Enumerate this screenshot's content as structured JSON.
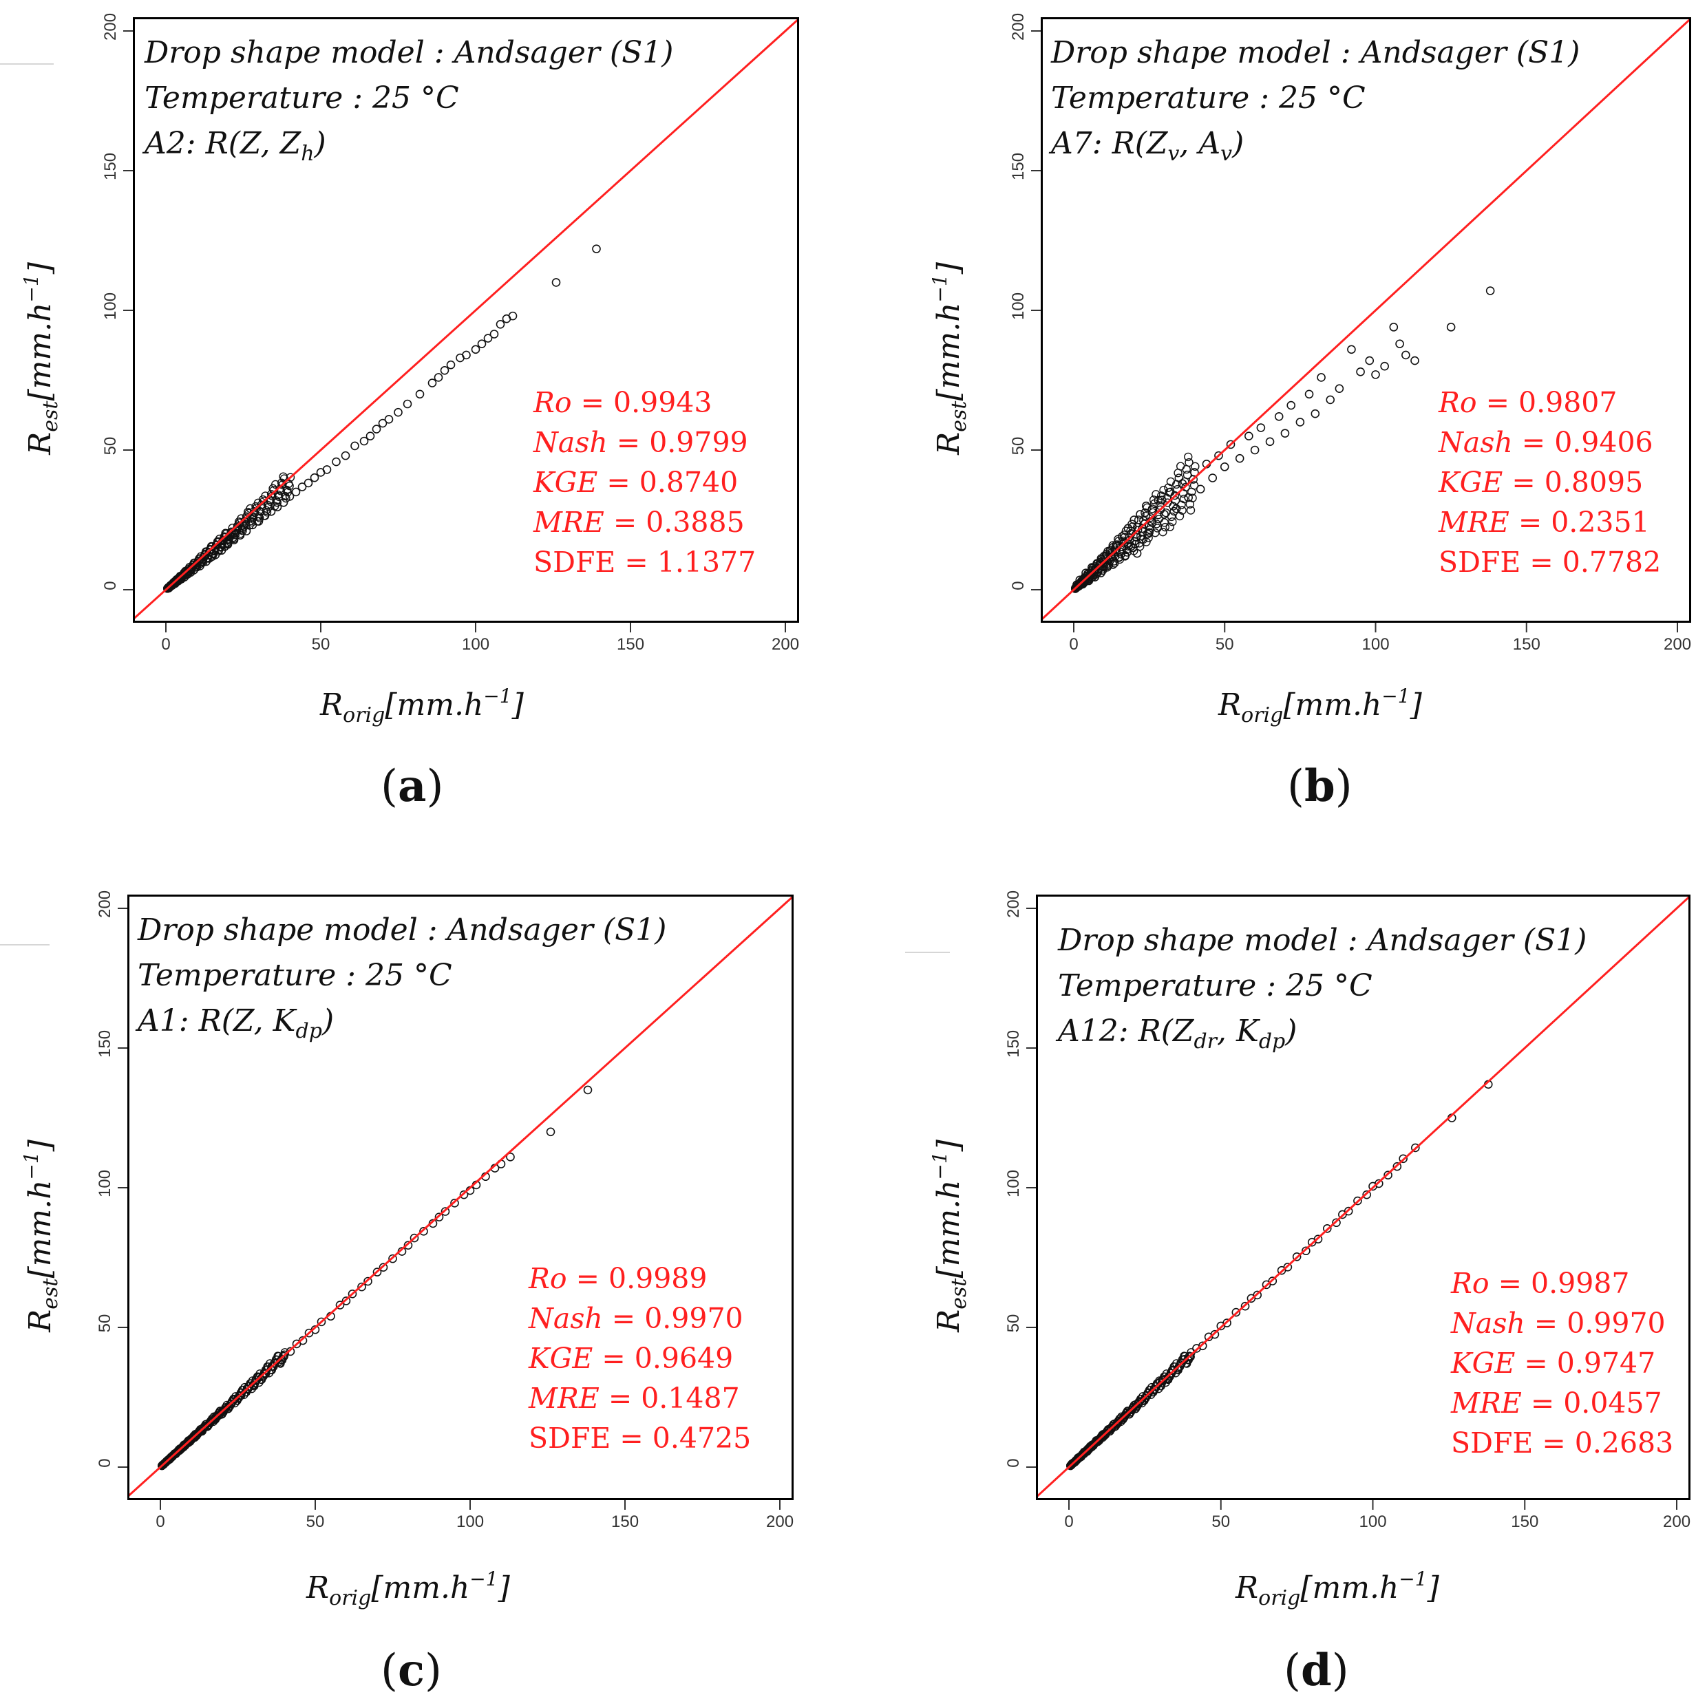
{
  "figure": {
    "crop_marks": [
      "",
      "",
      ""
    ]
  },
  "chart_data": [
    {
      "id": "a",
      "type": "scatter",
      "caption_letter": "a",
      "title_lines": [
        "Drop shape model : Andsager (S1)",
        "Temperature : 25 °C"
      ],
      "relation": "A2: R(Z, Zh)",
      "relation_parts": {
        "prefix": "A2: R(Z, Z",
        "sub1": "h",
        "mid": "",
        "sub2": "",
        "suffix": ")"
      },
      "xlabel": "Rorig[mm.h−1]",
      "ylabel": "Rest[mm.h−1]",
      "xlim": [
        0,
        200
      ],
      "ylim": [
        0,
        200
      ],
      "xticks": [
        0,
        50,
        100,
        150,
        200
      ],
      "yticks": [
        0,
        50,
        100,
        150,
        200
      ],
      "reference_line": "1:1",
      "stats": [
        {
          "label": "Ro",
          "value": "0.9943"
        },
        {
          "label": "Nash",
          "value": "0.9799"
        },
        {
          "label": "KGE",
          "value": "0.8740"
        },
        {
          "label": "MRE",
          "value": "0.3885"
        },
        {
          "label": "SDFE",
          "value": "1.1377"
        }
      ],
      "x": [
        1,
        2,
        3,
        4,
        5,
        6,
        7,
        8,
        9,
        10,
        11,
        12,
        13,
        14,
        15,
        16,
        17,
        18,
        19,
        20,
        22,
        24,
        26,
        28,
        30,
        32,
        34,
        36,
        38,
        40,
        42,
        44,
        46,
        48,
        50,
        52,
        55,
        58,
        61,
        64,
        66,
        68,
        70,
        72,
        75,
        78,
        82,
        86,
        88,
        90,
        92,
        95,
        97,
        100,
        102,
        104,
        106,
        108,
        110,
        112,
        126,
        139
      ],
      "y": [
        0.6,
        1.5,
        2.2,
        3.1,
        3.8,
        4.5,
        5.5,
        6.2,
        7.0,
        8.1,
        8.5,
        9.8,
        10.1,
        11.2,
        11.9,
        12.5,
        13.8,
        14.1,
        15.4,
        16.2,
        17.8,
        19.5,
        21.0,
        23.2,
        24.5,
        26.5,
        28.0,
        29.6,
        31.2,
        33.4,
        35.0,
        36.8,
        38.2,
        40.1,
        42.0,
        43.0,
        45.8,
        48.0,
        51.5,
        53.2,
        55.0,
        57.5,
        59.6,
        61.0,
        63.5,
        66.5,
        70.0,
        74.0,
        76.0,
        78.5,
        80.5,
        83.0,
        84.0,
        86.0,
        88.0,
        90.0,
        91.5,
        95.0,
        97.0,
        98.0,
        110,
        122
      ]
    },
    {
      "id": "b",
      "type": "scatter",
      "caption_letter": "b",
      "title_lines": [
        "Drop shape model : Andsager (S1)",
        "Temperature : 25 °C"
      ],
      "relation": "A7: R(Zv, Av)",
      "relation_parts": {
        "prefix": "A7: R(Z",
        "sub1": "v",
        "mid": ", A",
        "sub2": "v",
        "suffix": ")"
      },
      "xlabel": "Rorig[mm.h−1]",
      "ylabel": "Rest[mm.h−1]",
      "xlim": [
        0,
        200
      ],
      "ylim": [
        0,
        200
      ],
      "xticks": [
        0,
        50,
        100,
        150,
        200
      ],
      "yticks": [
        0,
        50,
        100,
        150,
        200
      ],
      "reference_line": "1:1",
      "stats": [
        {
          "label": "Ro",
          "value": "0.9807"
        },
        {
          "label": "Nash",
          "value": "0.9406"
        },
        {
          "label": "KGE",
          "value": "0.8095"
        },
        {
          "label": "MRE",
          "value": "0.2351"
        },
        {
          "label": "SDFE",
          "value": "0.7782"
        }
      ],
      "x": [
        1,
        2,
        3,
        4,
        5,
        6,
        7,
        8,
        9,
        10,
        11,
        12,
        13,
        14,
        15,
        16,
        17,
        18,
        19,
        20,
        21,
        22,
        23,
        24,
        25,
        26,
        28,
        30,
        32,
        34,
        36,
        38,
        40,
        42,
        44,
        46,
        48,
        50,
        52,
        55,
        58,
        60,
        62,
        65,
        68,
        70,
        72,
        75,
        78,
        80,
        82,
        85,
        88,
        92,
        95,
        98,
        100,
        103,
        106,
        108,
        110,
        113,
        125,
        138
      ],
      "y": [
        1.8,
        3.5,
        2.0,
        6.0,
        3.2,
        8.0,
        4.5,
        9.5,
        6.0,
        12.0,
        8.5,
        14.0,
        9.0,
        16.0,
        11.5,
        19.0,
        12.0,
        22.0,
        15.5,
        25.0,
        13.0,
        27.0,
        18.0,
        30.0,
        20.5,
        24.0,
        32.0,
        27.0,
        35.0,
        29.0,
        38.0,
        33.0,
        42.0,
        36.0,
        45.0,
        40.0,
        48.0,
        44.0,
        52.0,
        47.0,
        55.0,
        50.0,
        58.0,
        53.0,
        62.0,
        56.0,
        66.0,
        60.0,
        70.0,
        63.0,
        76.0,
        68.0,
        72.0,
        86.0,
        78.0,
        82.0,
        77.0,
        80.0,
        94.0,
        88.0,
        84.0,
        82.0,
        94.0,
        107
      ]
    },
    {
      "id": "c",
      "type": "scatter",
      "caption_letter": "c",
      "title_lines": [
        "Drop shape model : Andsager (S1)",
        "Temperature : 25 °C"
      ],
      "relation": "A1: R(Z, Kdp)",
      "relation_parts": {
        "prefix": "A1: R(Z, K",
        "sub1": "dp",
        "mid": "",
        "sub2": "",
        "suffix": ")"
      },
      "xlabel": "Rorig[mm.h−1]",
      "ylabel": "Rest[mm.h−1]",
      "xlim": [
        0,
        200
      ],
      "ylim": [
        0,
        200
      ],
      "xticks": [
        0,
        50,
        100,
        150,
        200
      ],
      "yticks": [
        0,
        50,
        100,
        150,
        200
      ],
      "reference_line": "1:1",
      "stats": [
        {
          "label": "Ro",
          "value": "0.9989"
        },
        {
          "label": "Nash",
          "value": "0.9970"
        },
        {
          "label": "KGE",
          "value": "0.9649"
        },
        {
          "label": "MRE",
          "value": "0.1487"
        },
        {
          "label": "SDFE",
          "value": "0.4725"
        }
      ],
      "x": [
        1,
        2,
        3,
        4,
        5,
        6,
        7,
        8,
        9,
        10,
        11,
        12,
        13,
        14,
        15,
        16,
        17,
        18,
        19,
        20,
        22,
        24,
        26,
        28,
        30,
        32,
        34,
        36,
        38,
        40,
        42,
        44,
        46,
        48,
        50,
        52,
        55,
        58,
        60,
        62,
        65,
        67,
        70,
        72,
        75,
        78,
        80,
        82,
        85,
        88,
        90,
        92,
        95,
        98,
        100,
        102,
        105,
        108,
        110,
        113,
        126,
        138
      ],
      "y": [
        0.9,
        2.1,
        2.8,
        4.1,
        4.8,
        6.2,
        6.8,
        8.1,
        8.7,
        10.2,
        10.8,
        12.1,
        12.7,
        14.2,
        14.6,
        16.1,
        16.8,
        18.2,
        18.6,
        20.1,
        21.6,
        24.2,
        25.6,
        28.1,
        29.5,
        32.2,
        33.4,
        36.1,
        37.5,
        40.2,
        41.4,
        44.1,
        45.3,
        48.0,
        49.2,
        52.0,
        54.0,
        58.0,
        59.5,
        62.0,
        64.5,
        66.5,
        69.8,
        71.5,
        74.6,
        77.2,
        79.4,
        82.0,
        84.4,
        87.2,
        89.5,
        91.5,
        94.5,
        97.5,
        99.0,
        101.0,
        104.0,
        107.0,
        108.5,
        111.0,
        120.0,
        135.0
      ]
    },
    {
      "id": "d",
      "type": "scatter",
      "caption_letter": "d",
      "title_lines": [
        "Drop shape model : Andsager (S1)",
        "Temperature : 25 °C"
      ],
      "relation": "A12: R(Zdr, Kdp)",
      "relation_parts": {
        "prefix": "A12: R(Z",
        "sub1": "dr",
        "mid": ", K",
        "sub2": "dp",
        "suffix": ")"
      },
      "xlabel": "Rorig[mm.h−1]",
      "ylabel": "Rest[mm.h−1]",
      "xlim": [
        0,
        200
      ],
      "ylim": [
        0,
        200
      ],
      "xticks": [
        0,
        50,
        100,
        150,
        200
      ],
      "yticks": [
        0,
        50,
        100,
        150,
        200
      ],
      "reference_line": "1:1",
      "stats": [
        {
          "label": "Ro",
          "value": "0.9987"
        },
        {
          "label": "Nash",
          "value": "0.9970"
        },
        {
          "label": "KGE",
          "value": "0.9747"
        },
        {
          "label": "MRE",
          "value": "0.0457"
        },
        {
          "label": "SDFE",
          "value": "0.2683"
        }
      ],
      "x": [
        1,
        2,
        3,
        4,
        5,
        6,
        7,
        8,
        9,
        10,
        11,
        12,
        13,
        14,
        15,
        16,
        17,
        18,
        19,
        20,
        22,
        24,
        26,
        28,
        30,
        32,
        34,
        36,
        38,
        40,
        42,
        44,
        46,
        48,
        50,
        52,
        55,
        58,
        60,
        62,
        65,
        67,
        70,
        72,
        75,
        78,
        80,
        82,
        85,
        88,
        90,
        92,
        95,
        98,
        100,
        102,
        105,
        108,
        110,
        114,
        126,
        138
      ],
      "y": [
        1.2,
        1.8,
        3.3,
        3.7,
        5.4,
        5.6,
        7.4,
        7.7,
        9.5,
        9.6,
        11.5,
        11.6,
        13.4,
        13.7,
        15.5,
        15.6,
        17.4,
        17.6,
        19.5,
        19.6,
        22.4,
        23.6,
        26.5,
        27.5,
        30.5,
        31.6,
        34.5,
        35.4,
        38.6,
        39.5,
        42.5,
        43.4,
        46.6,
        47.5,
        50.5,
        51.6,
        55.4,
        57.6,
        60.4,
        61.6,
        65.3,
        66.6,
        70.4,
        71.6,
        75.3,
        77.4,
        80.5,
        81.6,
        85.4,
        87.5,
        90.4,
        91.6,
        95.3,
        97.5,
        100.5,
        101.5,
        104.5,
        107.6,
        110.4,
        114.3,
        125.0,
        137.0
      ]
    }
  ]
}
